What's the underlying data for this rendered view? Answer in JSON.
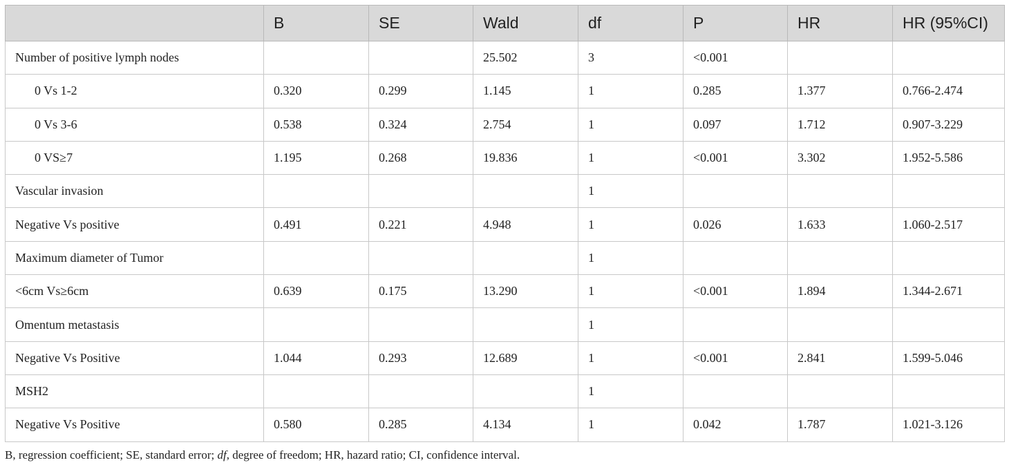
{
  "table": {
    "headers": [
      "",
      "B",
      "SE",
      "Wald",
      "df",
      "P",
      "HR",
      "HR (95%CI)"
    ],
    "rows": [
      {
        "label": "Number of positive lymph nodes",
        "indent": false,
        "B": "",
        "SE": "",
        "Wald": "25.502",
        "df": "3",
        "P": "<0.001",
        "HR": "",
        "CI": ""
      },
      {
        "label": "0 Vs 1-2",
        "indent": true,
        "B": "0.320",
        "SE": "0.299",
        "Wald": "1.145",
        "df": "1",
        "P": "0.285",
        "HR": "1.377",
        "CI": "0.766-2.474"
      },
      {
        "label": "0 Vs 3-6",
        "indent": true,
        "B": "0.538",
        "SE": "0.324",
        "Wald": "2.754",
        "df": "1",
        "P": "0.097",
        "HR": "1.712",
        "CI": "0.907-3.229"
      },
      {
        "label": "0 VS≥7",
        "indent": true,
        "B": "1.195",
        "SE": "0.268",
        "Wald": "19.836",
        "df": "1",
        "P": "<0.001",
        "HR": "3.302",
        "CI": "1.952-5.586"
      },
      {
        "label": "Vascular invasion",
        "indent": false,
        "B": "",
        "SE": "",
        "Wald": "",
        "df": "1",
        "P": "",
        "HR": "",
        "CI": ""
      },
      {
        "label": "Negative Vs positive",
        "indent": false,
        "B": "0.491",
        "SE": "0.221",
        "Wald": "4.948",
        "df": "1",
        "P": "0.026",
        "HR": "1.633",
        "CI": "1.060-2.517"
      },
      {
        "label": "Maximum diameter of Tumor",
        "indent": false,
        "B": "",
        "SE": "",
        "Wald": "",
        "df": "1",
        "P": "",
        "HR": "",
        "CI": ""
      },
      {
        "label": "<6cm Vs≥6cm",
        "indent": false,
        "B": "0.639",
        "SE": "0.175",
        "Wald": "13.290",
        "df": "1",
        "P": "<0.001",
        "HR": "1.894",
        "CI": "1.344-2.671"
      },
      {
        "label": "Omentum metastasis",
        "indent": false,
        "B": "",
        "SE": "",
        "Wald": "",
        "df": "1",
        "P": "",
        "HR": "",
        "CI": ""
      },
      {
        "label": "Negative Vs Positive",
        "indent": false,
        "B": "1.044",
        "SE": "0.293",
        "Wald": "12.689",
        "df": "1",
        "P": "<0.001",
        "HR": "2.841",
        "CI": "1.599-5.046"
      },
      {
        "label": "MSH2",
        "indent": false,
        "B": "",
        "SE": "",
        "Wald": "",
        "df": "1",
        "P": "",
        "HR": "",
        "CI": ""
      },
      {
        "label": "Negative Vs Positive",
        "indent": false,
        "B": "0.580",
        "SE": "0.285",
        "Wald": "4.134",
        "df": "1",
        "P": "0.042",
        "HR": "1.787",
        "CI": "1.021-3.126"
      }
    ]
  },
  "footnote": {
    "part1": "B, regression coefficient; SE, standard error; ",
    "df_italic": "df",
    "part2": ", degree of freedom; HR, hazard ratio; CI, confidence interval."
  },
  "colors": {
    "header_bg": "#d9d9d9",
    "border": "#c8c8c8",
    "text": "#222222"
  }
}
